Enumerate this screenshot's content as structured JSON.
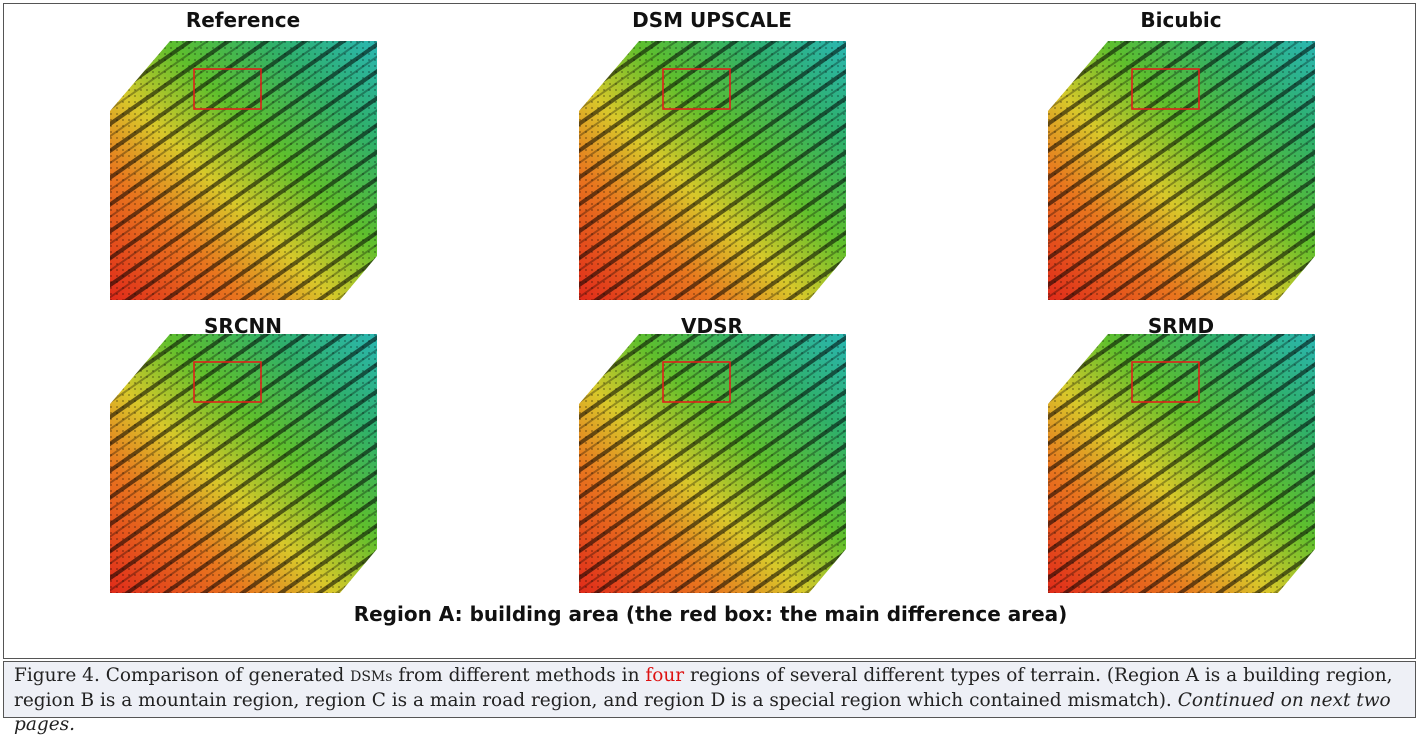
{
  "panels": [
    {
      "title": "Reference"
    },
    {
      "title": "DSM UPSCALE"
    },
    {
      "title": "Bicubic"
    },
    {
      "title": "SRCNN"
    },
    {
      "title": "VDSR"
    },
    {
      "title": "SRMD"
    }
  ],
  "region_label": "Region A: building area (the red box: the main difference area)",
  "caption": {
    "prefix": "Figure 4. Comparison of generated ",
    "abbr": "DSMs",
    "middle": " from different methods in ",
    "highlight": "four",
    "rest": " regions of several different types of terrain. (Region A is a building region, region B is a mountain region, region C is a main road region, and region D is a special region which contained mismatch). ",
    "continued": "Continued on next two pages."
  }
}
